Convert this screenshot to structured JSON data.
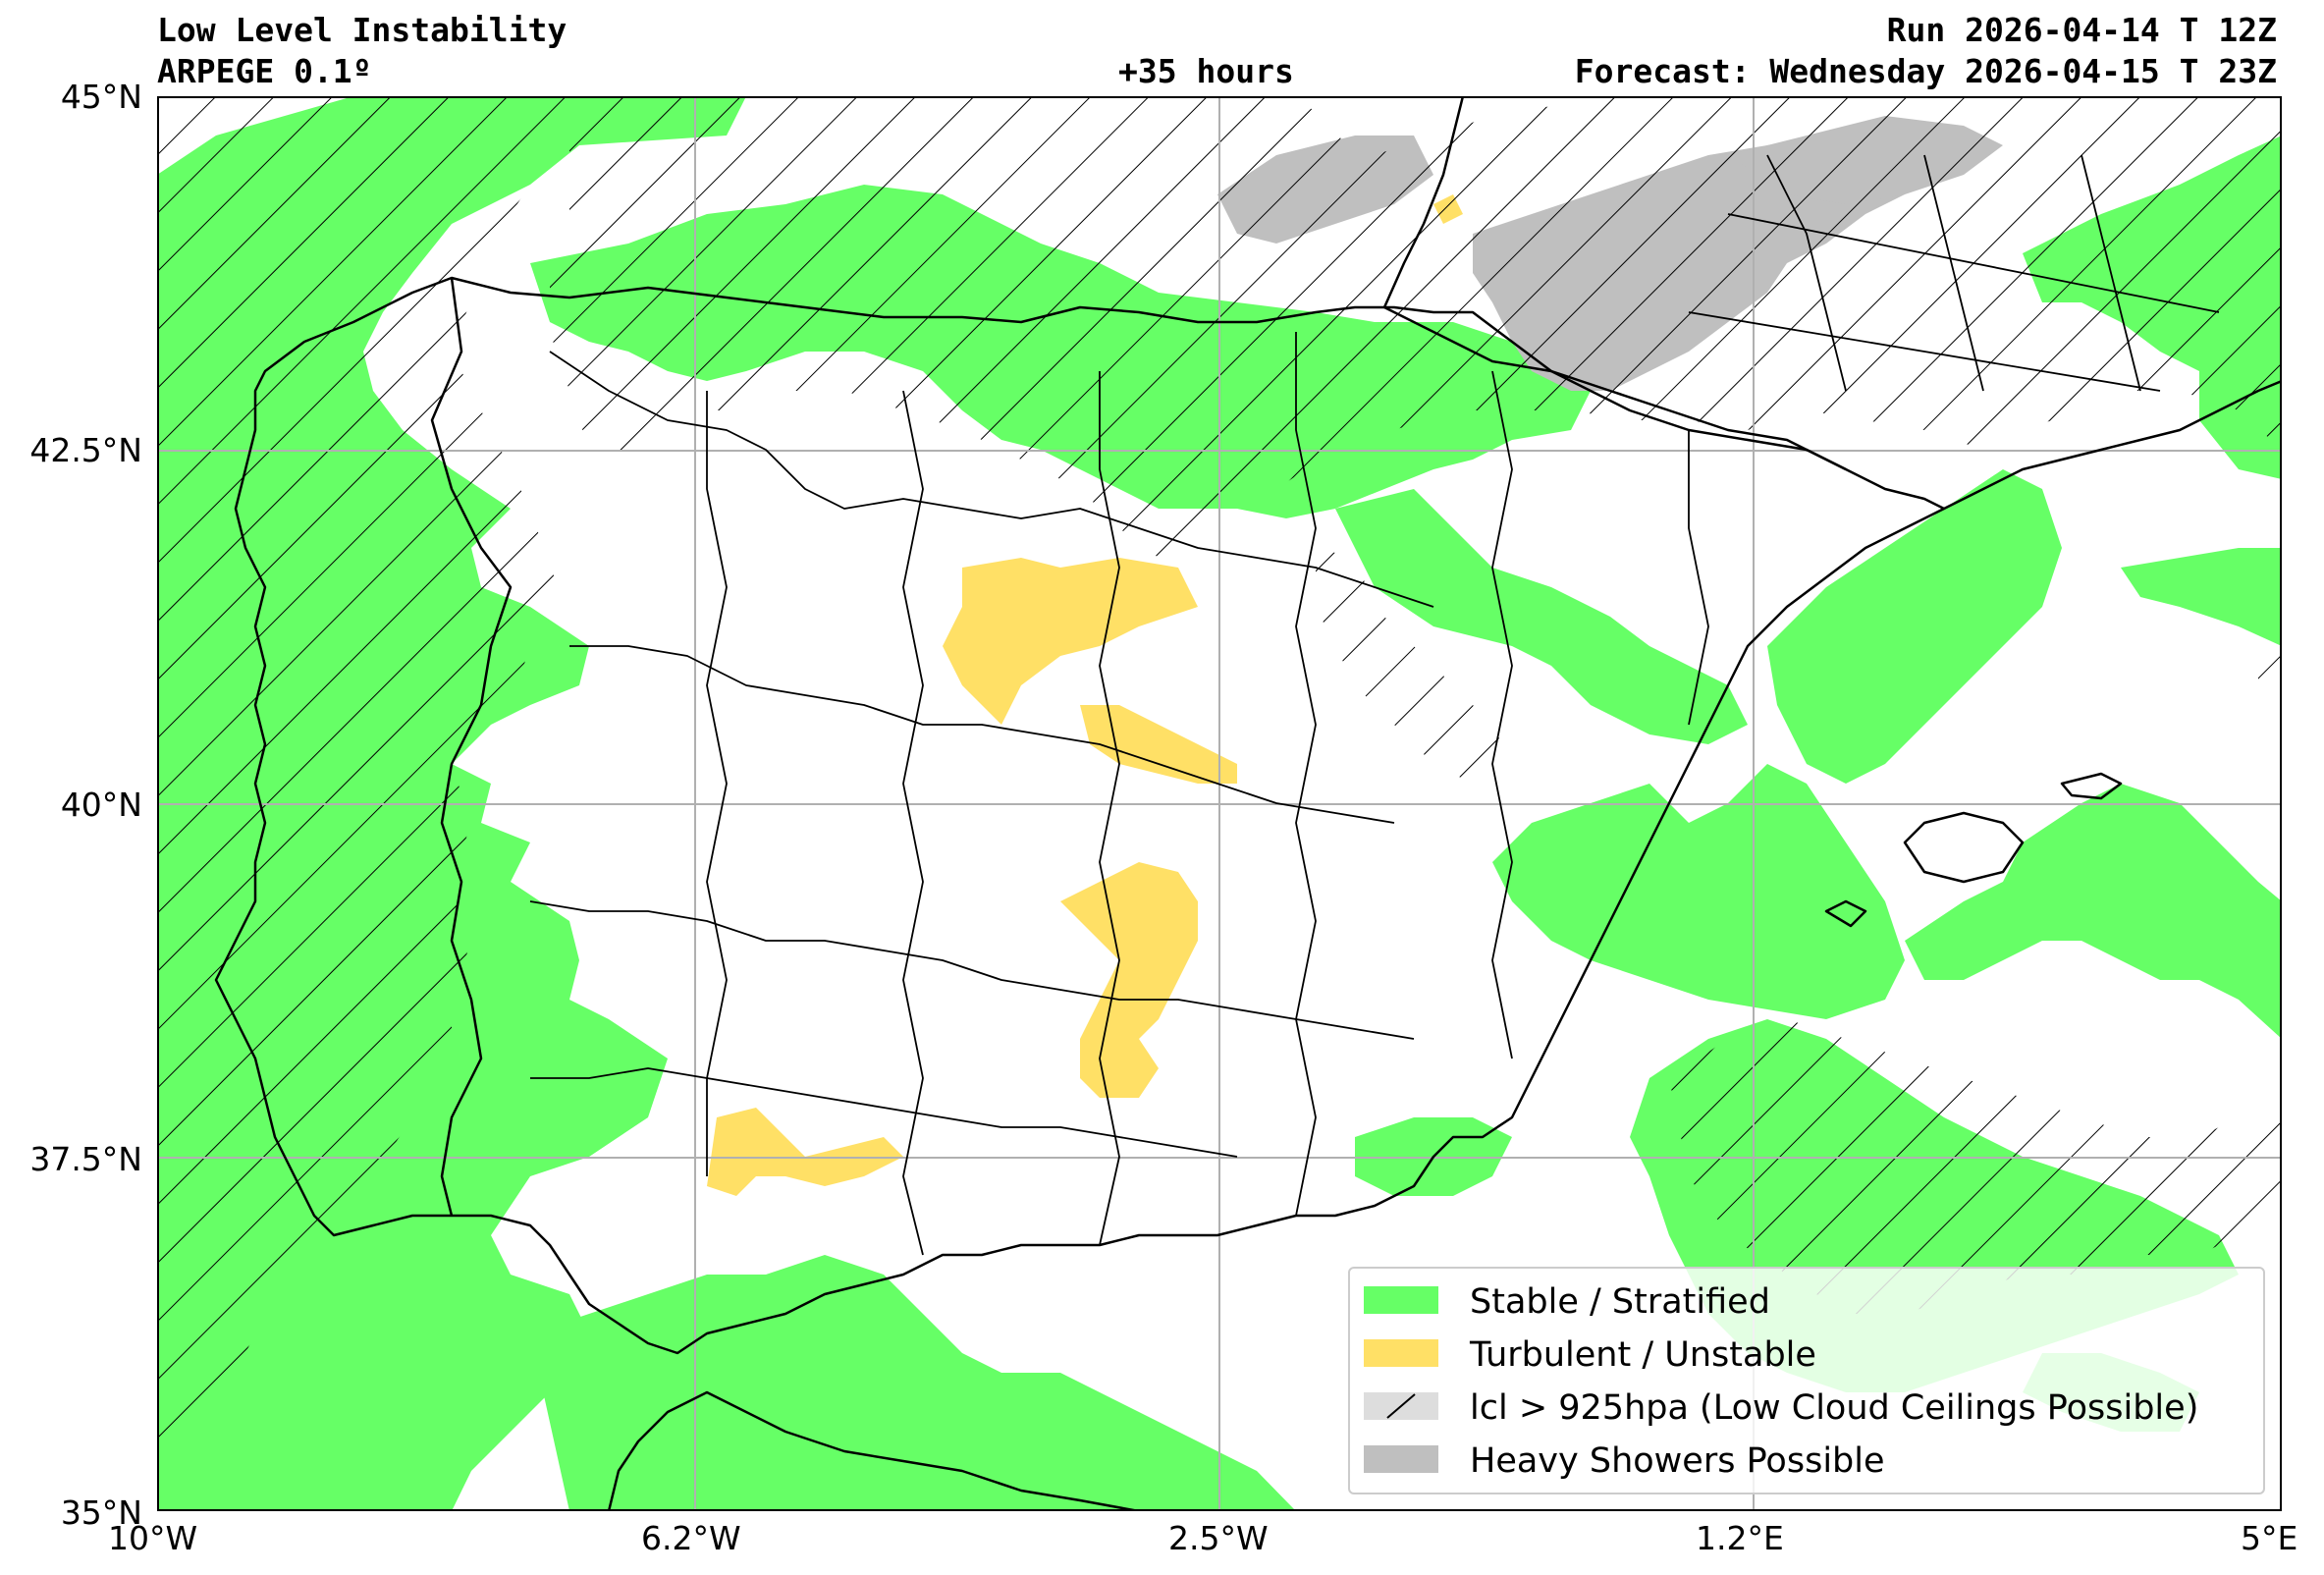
{
  "header": {
    "title": "Low Level Instability",
    "model": "ARPEGE 0.1º",
    "lead_time": "+35 hours",
    "run": "Run 2026-04-14 T 12Z",
    "forecast": "Forecast: Wednesday 2026-04-15 T 23Z"
  },
  "axes": {
    "lat_labels": [
      "45°N",
      "42.5°N",
      "40°N",
      "37.5°N",
      "35°N"
    ],
    "lon_labels": [
      "10°W",
      "6.2°W",
      "2.5°W",
      "1.2°E",
      "5°E"
    ],
    "lat_range": [
      35,
      45
    ],
    "lon_range": [
      -10,
      5
    ],
    "grid": true
  },
  "legend": {
    "items": [
      {
        "label": "Stable / Stratified",
        "swatch": "green"
      },
      {
        "label": "Turbulent / Unstable",
        "swatch": "yellow"
      },
      {
        "label": "lcl > 925hpa (Low Cloud Ceilings Possible)",
        "swatch": "hatch"
      },
      {
        "label": "Heavy Showers Possible",
        "swatch": "gray"
      }
    ]
  },
  "colors": {
    "stable": "#66ff66",
    "unstable": "#ffe066",
    "showers": "#bfbfbf",
    "hatch": "#000000",
    "border": "#000000",
    "grid": "#b0b0b0"
  },
  "icons": {
    "map": "iberia-map-icon",
    "hatch": "diagonal-hatch-icon"
  }
}
